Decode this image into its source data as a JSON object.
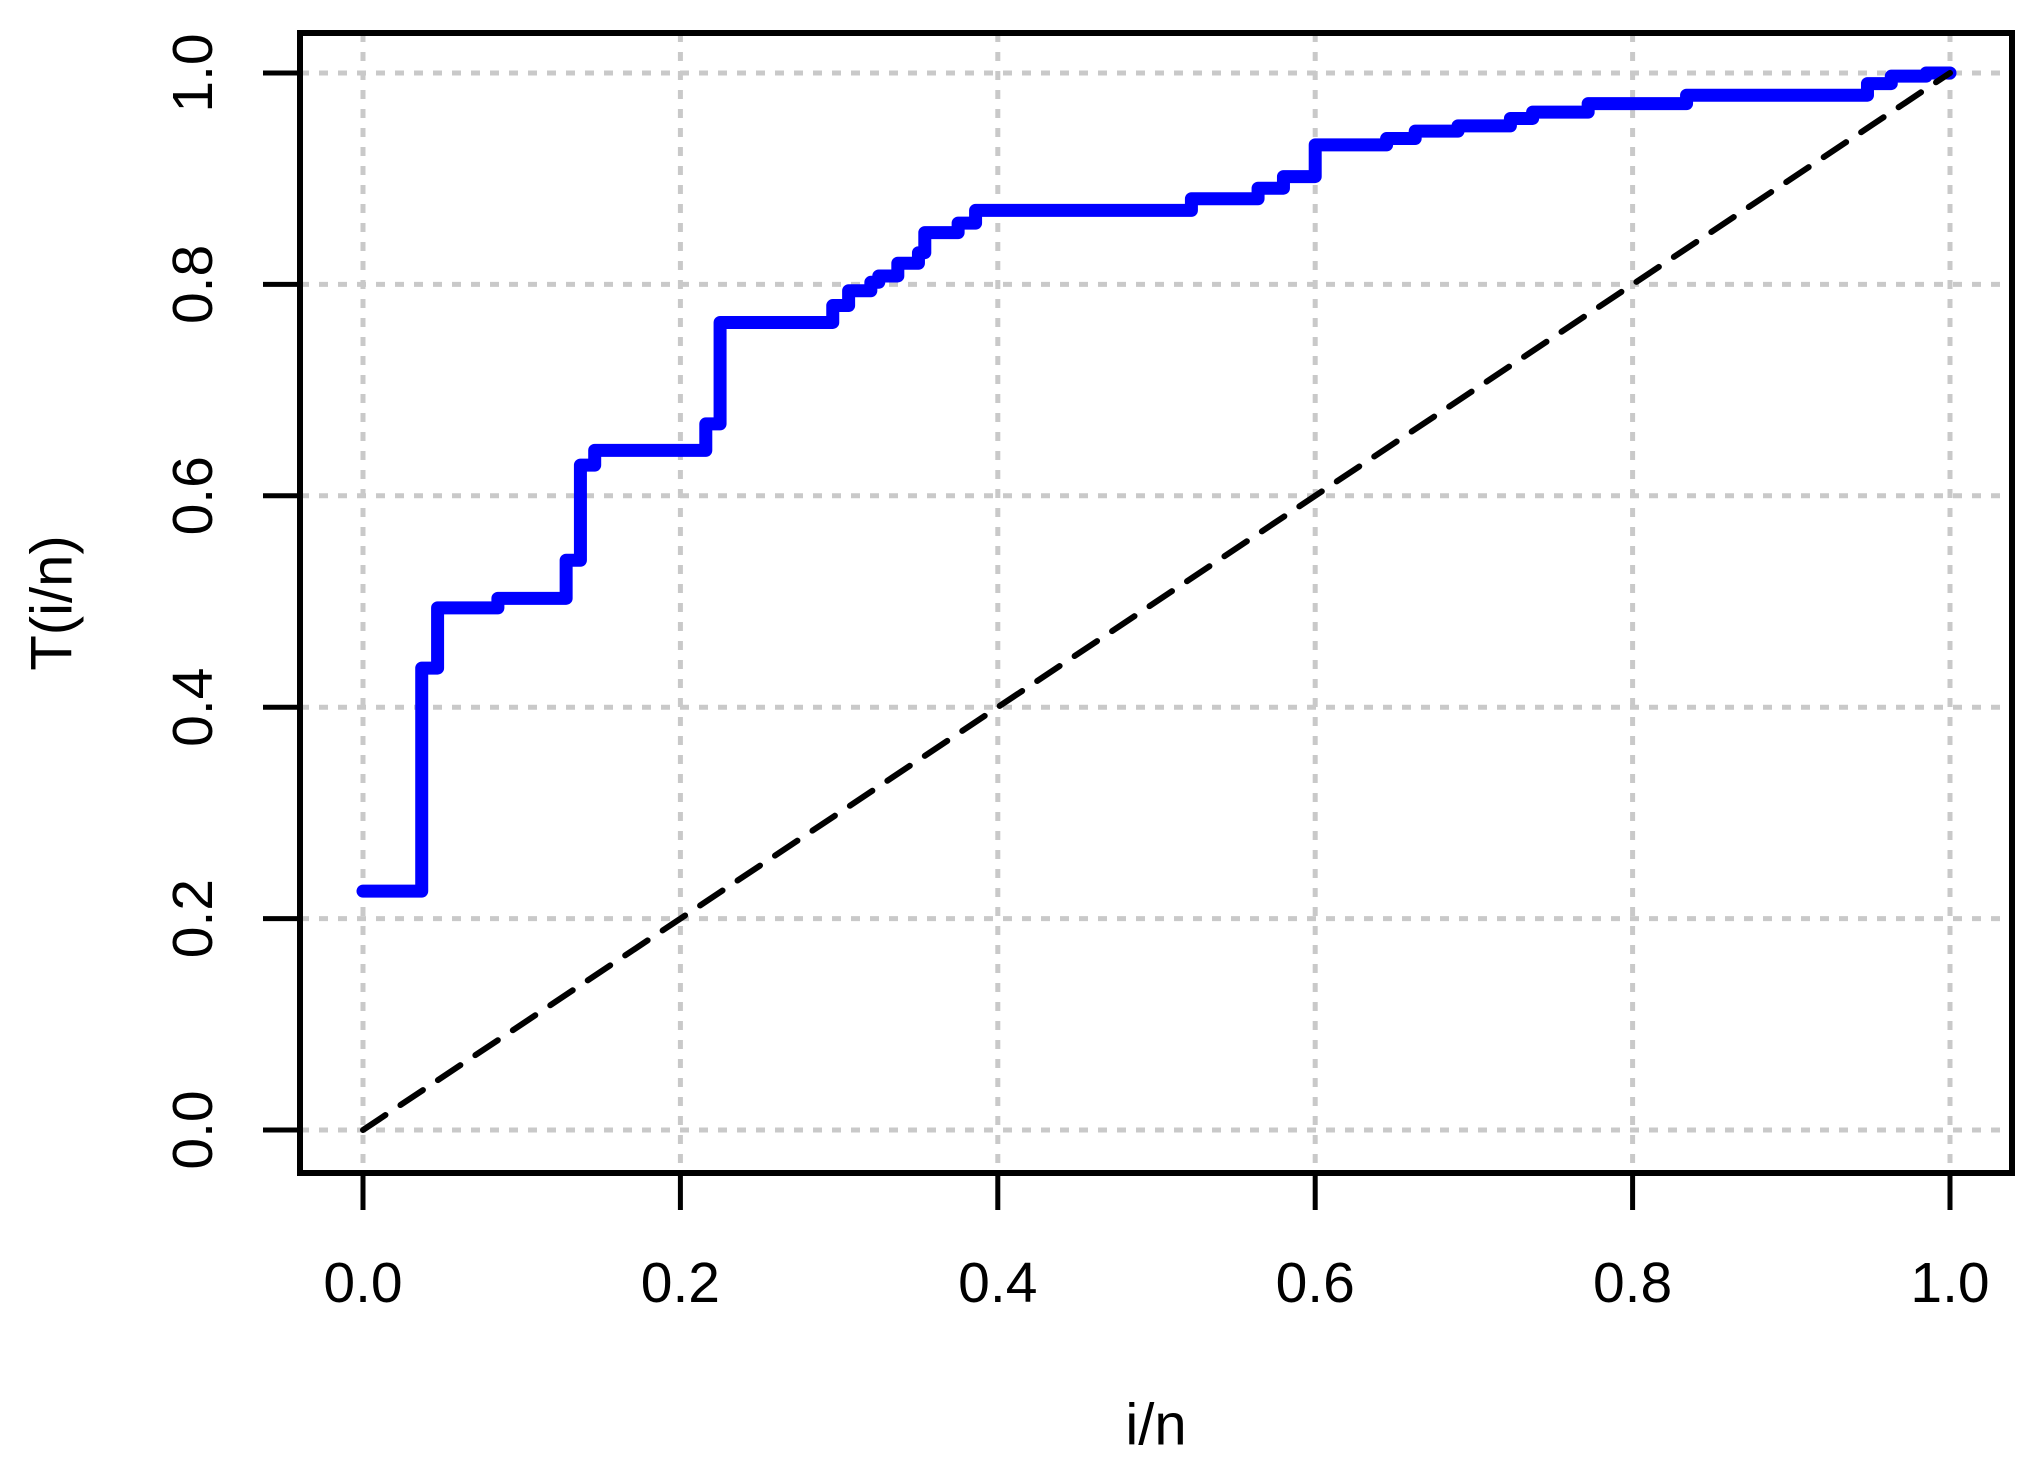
{
  "colors": {
    "background": "#FFFFFF",
    "curve": "#0000FF",
    "reference_line": "#000000",
    "grid": "#C9C9C9",
    "box": "#000000",
    "tick": "#000000",
    "text": "#000000"
  },
  "chart_data": {
    "type": "line",
    "subtype": "step",
    "title": "",
    "xlabel": "i/n",
    "ylabel": "T(i/n)",
    "xlim": [
      0,
      1
    ],
    "ylim": [
      0,
      1
    ],
    "grid": true,
    "grid_style": "dashed",
    "legend": "none",
    "x_tick_labels": [
      "0.0",
      "0.2",
      "0.4",
      "0.6",
      "0.8",
      "1.0"
    ],
    "x_tick_values": [
      0,
      0.2,
      0.4,
      0.6,
      0.8,
      1.0
    ],
    "y_tick_labels": [
      "0.0",
      "0.2",
      "0.4",
      "0.6",
      "0.8",
      "1.0"
    ],
    "y_tick_values": [
      0,
      0.2,
      0.4,
      0.6,
      0.8,
      1.0
    ],
    "series": [
      {
        "name": "empirical-step-curve",
        "color": "#0000FF",
        "line_width": 13,
        "style": "step-solid",
        "points": [
          [
            0.0,
            0.226
          ],
          [
            0.037,
            0.437
          ],
          [
            0.047,
            0.494
          ],
          [
            0.085,
            0.503
          ],
          [
            0.128,
            0.539
          ],
          [
            0.137,
            0.629
          ],
          [
            0.146,
            0.643
          ],
          [
            0.216,
            0.668
          ],
          [
            0.225,
            0.764
          ],
          [
            0.296,
            0.78
          ],
          [
            0.306,
            0.794
          ],
          [
            0.32,
            0.802
          ],
          [
            0.325,
            0.808
          ],
          [
            0.337,
            0.82
          ],
          [
            0.35,
            0.83
          ],
          [
            0.354,
            0.849
          ],
          [
            0.375,
            0.858
          ],
          [
            0.386,
            0.87
          ],
          [
            0.522,
            0.881
          ],
          [
            0.564,
            0.891
          ],
          [
            0.58,
            0.902
          ],
          [
            0.6,
            0.932
          ],
          [
            0.645,
            0.938
          ],
          [
            0.663,
            0.945
          ],
          [
            0.69,
            0.95
          ],
          [
            0.723,
            0.957
          ],
          [
            0.737,
            0.963
          ],
          [
            0.772,
            0.971
          ],
          [
            0.834,
            0.979
          ],
          [
            0.948,
            0.99
          ],
          [
            0.963,
            0.997
          ],
          [
            0.985,
            1.0
          ],
          [
            1.0,
            1.0
          ]
        ]
      },
      {
        "name": "diagonal-reference",
        "color": "#000000",
        "line_width": 6,
        "style": "dashed",
        "points": [
          [
            0,
            0
          ],
          [
            1,
            1
          ]
        ]
      }
    ]
  }
}
